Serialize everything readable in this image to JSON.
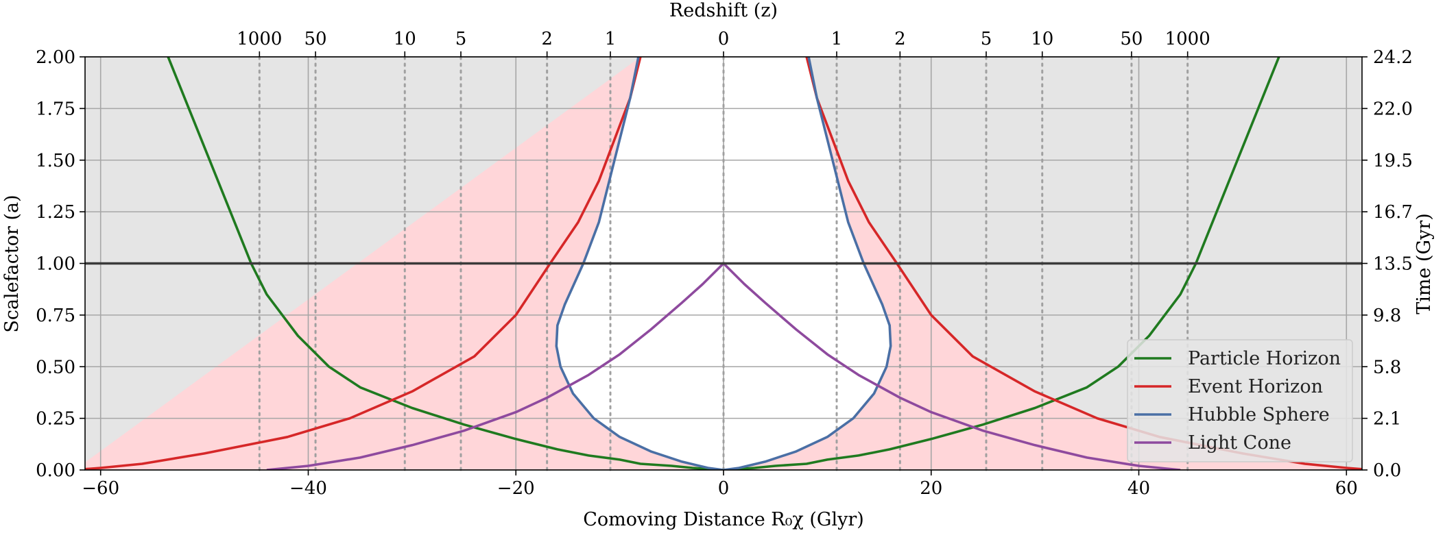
{
  "chart_data": {
    "type": "line",
    "xlabel": "Comoving Distance R₀χ (Glyr)",
    "ylabel": "Scalefactor (a)",
    "y2label": "Time (Gyr)",
    "x2label": "Redshift (z)",
    "xlim": [
      -61.5,
      61.5
    ],
    "ylim": [
      0,
      2
    ],
    "xticks": [
      -60,
      -40,
      -20,
      0,
      20,
      40,
      60
    ],
    "xtick_labels": [
      "−60",
      "−40",
      "−20",
      "0",
      "20",
      "40",
      "60"
    ],
    "yticks": [
      0,
      0.25,
      0.5,
      0.75,
      1.0,
      1.25,
      1.5,
      1.75,
      2.0
    ],
    "ytick_labels": [
      "0.00",
      "0.25",
      "0.50",
      "0.75",
      "1.00",
      "1.25",
      "1.50",
      "1.75",
      "2.00"
    ],
    "y2tick_labels": [
      "0.0",
      "2.1",
      "5.8",
      "9.8",
      "13.5",
      "16.7",
      "19.5",
      "22.0",
      "24.2"
    ],
    "redshift_ticks": [
      {
        "label": "1000",
        "x": -44.7
      },
      {
        "label": "50",
        "x": -39.3
      },
      {
        "label": "10",
        "x": -30.7
      },
      {
        "label": "5",
        "x": -25.3
      },
      {
        "label": "2",
        "x": -17.0
      },
      {
        "label": "1",
        "x": -10.9
      },
      {
        "label": "0",
        "x": 0
      },
      {
        "label": "1",
        "x": 10.9
      },
      {
        "label": "2",
        "x": 17.0
      },
      {
        "label": "5",
        "x": 25.3
      },
      {
        "label": "10",
        "x": 30.7
      },
      {
        "label": "50",
        "x": 39.3
      },
      {
        "label": "1000",
        "x": 44.7
      }
    ],
    "present_day_line": {
      "y": 1.0
    },
    "grid": true,
    "legend_position": "bottom-right",
    "colors": {
      "particle_horizon": "#1f7a1f",
      "event_horizon": "#d62728",
      "hubble_sphere": "#4a6fa5",
      "light_cone": "#8e4a9e",
      "outside_fill": "#e5e5e5",
      "between_fill": "#ffd6d9"
    },
    "series": [
      {
        "name": "Particle Horizon",
        "key": "particle_horizon",
        "points": [
          [
            0,
            0
          ],
          [
            1.5,
            0.005
          ],
          [
            3,
            0.01
          ],
          [
            5,
            0.02
          ],
          [
            8,
            0.03
          ],
          [
            10,
            0.05
          ],
          [
            13,
            0.07
          ],
          [
            16,
            0.1
          ],
          [
            20,
            0.15
          ],
          [
            25,
            0.22
          ],
          [
            30,
            0.3
          ],
          [
            35,
            0.4
          ],
          [
            38,
            0.5
          ],
          [
            41,
            0.65
          ],
          [
            44,
            0.85
          ],
          [
            45.5,
            1.0
          ],
          [
            47.5,
            1.25
          ],
          [
            49.5,
            1.5
          ],
          [
            51.5,
            1.75
          ],
          [
            53.5,
            2.0
          ]
        ]
      },
      {
        "name": "Event Horizon",
        "key": "event_horizon",
        "points": [
          [
            8,
            2.0
          ],
          [
            9,
            1.8
          ],
          [
            10.5,
            1.6
          ],
          [
            12,
            1.4
          ],
          [
            14,
            1.2
          ],
          [
            16.7,
            1.0
          ],
          [
            20,
            0.75
          ],
          [
            24,
            0.55
          ],
          [
            30,
            0.38
          ],
          [
            36,
            0.25
          ],
          [
            42,
            0.16
          ],
          [
            50,
            0.08
          ],
          [
            56,
            0.03
          ],
          [
            60,
            0.01
          ],
          [
            62.5,
            0.0
          ]
        ]
      },
      {
        "name": "Hubble Sphere",
        "key": "hubble_sphere",
        "points": [
          [
            0,
            0
          ],
          [
            1.5,
            0.01
          ],
          [
            4,
            0.04
          ],
          [
            7,
            0.09
          ],
          [
            10,
            0.16
          ],
          [
            12.5,
            0.25
          ],
          [
            14.5,
            0.37
          ],
          [
            15.7,
            0.5
          ],
          [
            16.1,
            0.6
          ],
          [
            16,
            0.7
          ],
          [
            15.3,
            0.8
          ],
          [
            14.4,
            0.9
          ],
          [
            13.5,
            1.0
          ],
          [
            12,
            1.2
          ],
          [
            10.5,
            1.5
          ],
          [
            9,
            1.8
          ],
          [
            8.2,
            2.0
          ]
        ]
      },
      {
        "name": "Light Cone",
        "key": "light_cone",
        "points": [
          [
            0,
            1.0
          ],
          [
            2,
            0.9
          ],
          [
            4,
            0.81
          ],
          [
            7,
            0.68
          ],
          [
            10,
            0.56
          ],
          [
            13,
            0.46
          ],
          [
            17,
            0.35
          ],
          [
            20,
            0.28
          ],
          [
            25,
            0.19
          ],
          [
            30,
            0.12
          ],
          [
            35,
            0.06
          ],
          [
            40,
            0.02
          ],
          [
            44,
            0.0
          ]
        ]
      }
    ],
    "symmetric_about_x0": true
  }
}
